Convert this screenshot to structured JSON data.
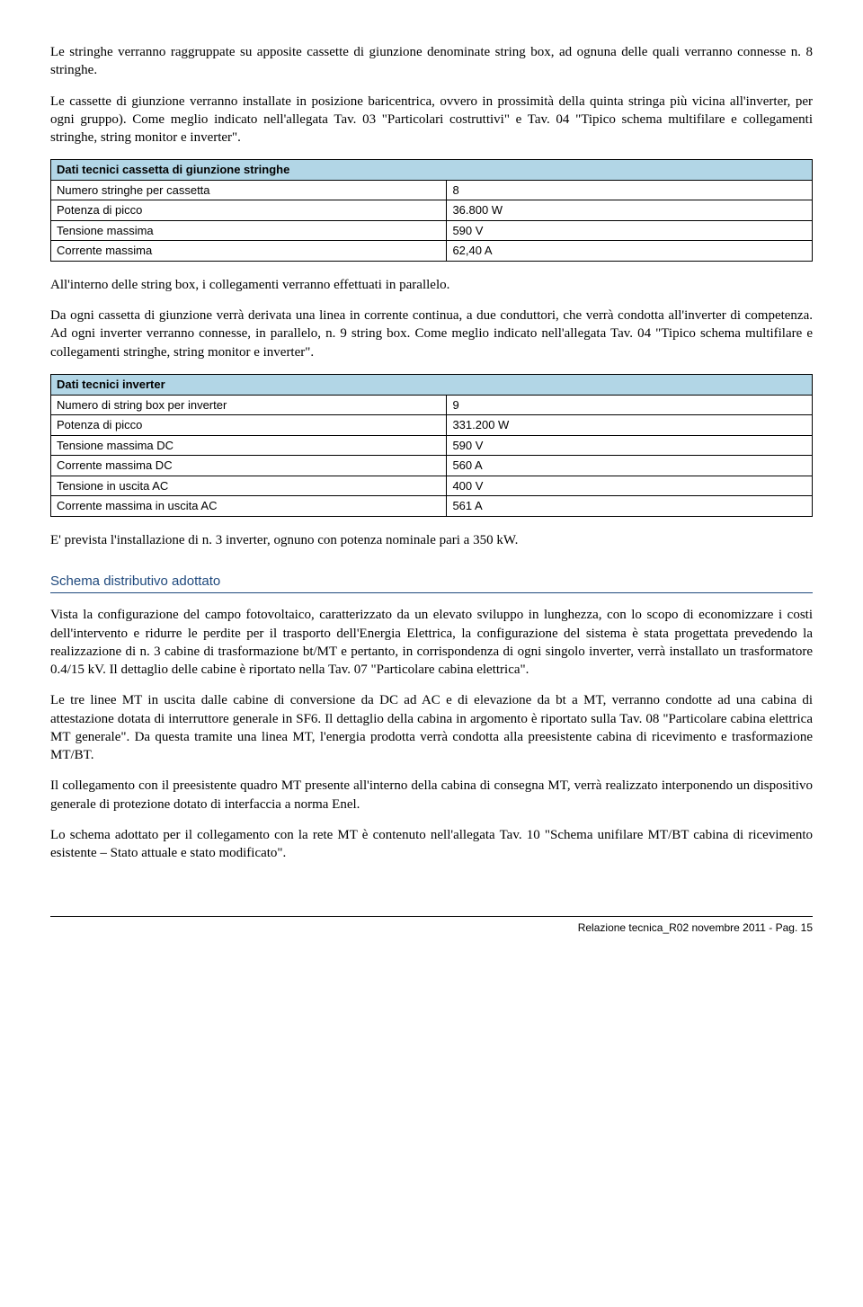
{
  "para1": "Le stringhe verranno raggruppate su apposite cassette di giunzione denominate string box, ad ognuna delle quali verranno connesse n. 8 stringhe.",
  "para2": "Le cassette di giunzione verranno installate in posizione baricentrica, ovvero in prossimità della quinta stringa più vicina all'inverter, per ogni gruppo). Come meglio indicato nell'allegata Tav. 03 \"Particolari costruttivi\" e Tav. 04 \"Tipico schema multifilare e collegamenti stringhe, string monitor e inverter\".",
  "table1": {
    "title": "Dati tecnici cassetta di giunzione stringhe",
    "rows": [
      {
        "label": "Numero stringhe per cassetta",
        "value": "8"
      },
      {
        "label": "Potenza di picco",
        "value": "36.800 W"
      },
      {
        "label": "Tensione massima",
        "value": "590 V"
      },
      {
        "label": "Corrente massima",
        "value": "62,40 A"
      }
    ]
  },
  "para3": "All'interno delle string box, i collegamenti verranno effettuati in parallelo.",
  "para4": "Da ogni cassetta di giunzione verrà derivata una linea in corrente continua, a due conduttori, che verrà condotta all'inverter di competenza. Ad ogni inverter verranno connesse, in parallelo, n. 9 string box. Come meglio indicato nell'allegata Tav. 04 \"Tipico schema multifilare e collegamenti stringhe, string monitor e inverter\".",
  "table2": {
    "title": "Dati tecnici inverter",
    "rows": [
      {
        "label": "Numero di string box per inverter",
        "value": "9"
      },
      {
        "label": "Potenza di picco",
        "value": "331.200 W"
      },
      {
        "label": "Tensione massima DC",
        "value": "590 V"
      },
      {
        "label": "Corrente massima DC",
        "value": "560 A"
      },
      {
        "label": "Tensione in uscita AC",
        "value": "400 V"
      },
      {
        "label": "Corrente massima in uscita AC",
        "value": "561 A"
      }
    ]
  },
  "para5": "E' prevista l'installazione di n. 3 inverter, ognuno con potenza nominale pari a 350 kW.",
  "section_heading": "Schema distributivo adottato",
  "para6": "Vista la configurazione del campo fotovoltaico, caratterizzato da un elevato sviluppo in lunghezza, con lo scopo di economizzare i costi dell'intervento e ridurre le perdite per il trasporto dell'Energia Elettrica, la configurazione del sistema è stata progettata prevedendo la realizzazione di n. 3 cabine di trasformazione bt/MT e pertanto, in corrispondenza di ogni singolo inverter, verrà installato un trasformatore 0.4/15 kV. Il dettaglio delle cabine è riportato nella Tav. 07 \"Particolare cabina elettrica\".",
  "para7": "Le tre linee MT in uscita dalle cabine di conversione da DC ad AC e di elevazione da bt a MT, verranno condotte ad una cabina di attestazione dotata di interruttore generale in SF6. Il dettaglio della cabina in argomento è riportato sulla Tav. 08 \"Particolare cabina elettrica MT generale\". Da questa tramite una linea MT, l'energia prodotta verrà condotta alla preesistente cabina di ricevimento e trasformazione MT/BT.",
  "para8": "Il collegamento con il preesistente quadro MT presente all'interno della cabina di consegna MT, verrà realizzato interponendo un dispositivo generale di protezione dotato di interfaccia a norma Enel.",
  "para9": "Lo schema adottato per il collegamento con la rete MT è contenuto nell'allegata Tav. 10 \"Schema unifilare MT/BT cabina di ricevimento esistente – Stato attuale e stato modificato\".",
  "footer": "Relazione tecnica_R02 novembre 2011  - Pag. 15"
}
